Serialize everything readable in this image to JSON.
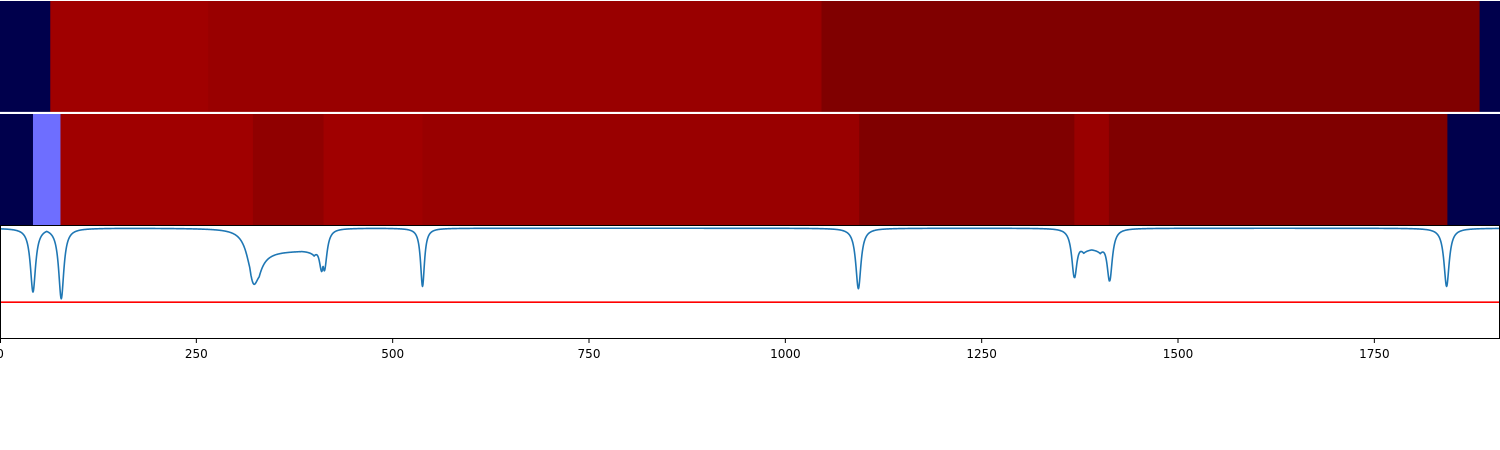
{
  "chart_data": {
    "type": "heatmap",
    "title": "",
    "xlabel": "",
    "ylabel": "",
    "xlim": [
      0,
      1910
    ],
    "x_ticks": [
      0,
      250,
      500,
      750,
      1000,
      1250,
      1500,
      1750
    ],
    "x_tick_labels": [
      "0",
      "250",
      "500",
      "750",
      "1000",
      "1250",
      "1500",
      "1750"
    ],
    "grid": false,
    "legend": "none",
    "segment_rows": [
      {
        "segments": [
          {
            "start": 0,
            "end": 64,
            "color": "#00004c"
          },
          {
            "start": 64,
            "end": 265,
            "color": "#a00000"
          },
          {
            "start": 265,
            "end": 1046,
            "color": "#990000"
          },
          {
            "start": 1046,
            "end": 1884,
            "color": "#800000"
          },
          {
            "start": 1884,
            "end": 1910,
            "color": "#00004c"
          }
        ]
      },
      {
        "segments": [
          {
            "start": 0,
            "end": 42,
            "color": "#00004c"
          },
          {
            "start": 42,
            "end": 77,
            "color": "#6e6eff"
          },
          {
            "start": 77,
            "end": 322,
            "color": "#a00000"
          },
          {
            "start": 322,
            "end": 412,
            "color": "#900000"
          },
          {
            "start": 412,
            "end": 538,
            "color": "#a00000"
          },
          {
            "start": 538,
            "end": 1094,
            "color": "#990000"
          },
          {
            "start": 1094,
            "end": 1368,
            "color": "#800000"
          },
          {
            "start": 1368,
            "end": 1412,
            "color": "#990000"
          },
          {
            "start": 1412,
            "end": 1843,
            "color": "#800000"
          },
          {
            "start": 1843,
            "end": 1910,
            "color": "#00004c"
          }
        ]
      }
    ],
    "signal": {
      "color": "#1f77b4",
      "ylim": [
        0,
        1
      ],
      "baseline": 0.98,
      "dips": [
        {
          "center": 42,
          "depth": 0.57,
          "width": 4
        },
        {
          "center": 78,
          "depth": 0.63,
          "width": 4
        },
        {
          "center": 320,
          "depth": 0.4,
          "width": 4
        },
        {
          "center": 322,
          "depth": 0.42,
          "width": 9
        },
        {
          "center": 410,
          "depth": 0.35,
          "width": 4
        },
        {
          "center": 413,
          "depth": 0.38,
          "width": 4
        },
        {
          "center": 538,
          "depth": 0.52,
          "width": 3
        },
        {
          "center": 1093,
          "depth": 0.54,
          "width": 4
        },
        {
          "center": 1368,
          "depth": 0.44,
          "width": 4
        },
        {
          "center": 1413,
          "depth": 0.47,
          "width": 4
        },
        {
          "center": 1842,
          "depth": 0.52,
          "width": 4
        }
      ],
      "plateaus": [
        {
          "start": 318,
          "end": 412,
          "level": 0.78
        },
        {
          "start": 1368,
          "end": 1413,
          "level": 0.8
        }
      ],
      "threshold": {
        "y": 0.32,
        "color": "#ff0000"
      }
    }
  }
}
